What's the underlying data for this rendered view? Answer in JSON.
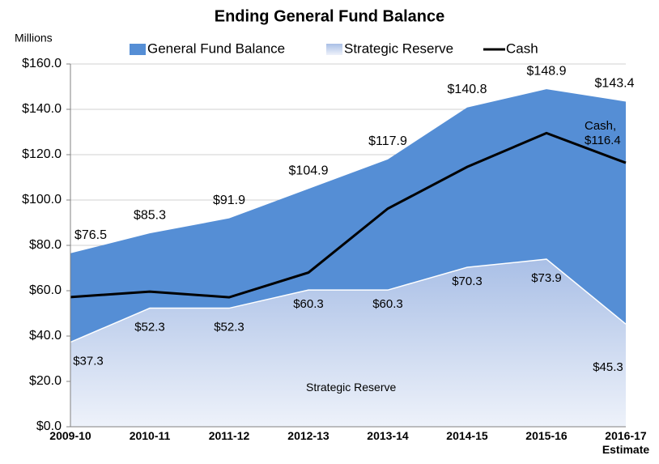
{
  "chart_data": {
    "type": "area",
    "title": "Ending General Fund Balance",
    "y_axis_label": "Millions",
    "categories": [
      "2009-10",
      "2010-11",
      "2011-12",
      "2012-13",
      "2013-14",
      "2014-15",
      "2015-16",
      "2016-17 Estimate"
    ],
    "series": [
      {
        "name": "General Fund Balance",
        "type": "area",
        "color": "#558ed5",
        "values": [
          76.5,
          85.3,
          91.9,
          104.9,
          117.9,
          140.8,
          148.9,
          143.4
        ],
        "value_labels": [
          "$76.5",
          "$85.3",
          "$91.9",
          "$104.9",
          "$117.9",
          "$140.8",
          "$148.9",
          "$143.4"
        ]
      },
      {
        "name": "Strategic Reserve",
        "type": "area",
        "color": "#a9bfe6",
        "values": [
          37.3,
          52.3,
          52.3,
          60.3,
          60.3,
          70.3,
          73.9,
          45.3
        ],
        "value_labels": [
          "$37.3",
          "$52.3",
          "$52.3",
          "$60.3",
          "$60.3",
          "$70.3",
          "$73.9",
          "$45.3"
        ]
      },
      {
        "name": "Cash",
        "type": "line",
        "color": "#000000",
        "values": [
          57.2,
          59.6,
          57.1,
          68.0,
          96.2,
          114.6,
          129.5,
          116.4
        ]
      }
    ],
    "annotations": [
      "Cash, $116.4",
      "Strategic Reserve"
    ],
    "ylim": [
      0,
      160
    ],
    "yticks": [
      {
        "value": 0,
        "label": "$0.0"
      },
      {
        "value": 20,
        "label": "$20.0"
      },
      {
        "value": 40,
        "label": "$40.0"
      },
      {
        "value": 60,
        "label": "$60.0"
      },
      {
        "value": 80,
        "label": "$80.0"
      },
      {
        "value": 100,
        "label": "$100.0"
      },
      {
        "value": 120,
        "label": "$120.0"
      },
      {
        "value": 140,
        "label": "$140.0"
      },
      {
        "value": 160,
        "label": "$160.0"
      }
    ],
    "grid": true,
    "legend": "top"
  }
}
